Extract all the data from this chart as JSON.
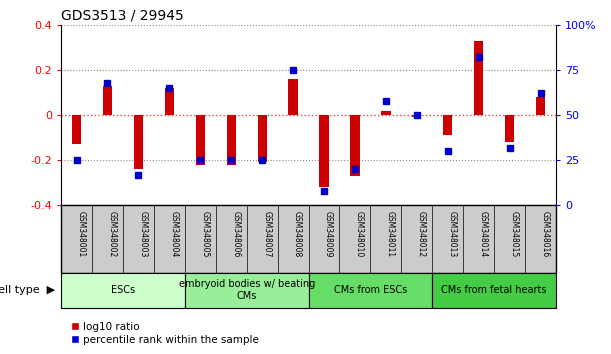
{
  "title": "GDS3513 / 29945",
  "samples": [
    "GSM348001",
    "GSM348002",
    "GSM348003",
    "GSM348004",
    "GSM348005",
    "GSM348006",
    "GSM348007",
    "GSM348008",
    "GSM348009",
    "GSM348010",
    "GSM348011",
    "GSM348012",
    "GSM348013",
    "GSM348014",
    "GSM348015",
    "GSM348016"
  ],
  "log10_ratio": [
    -0.13,
    0.13,
    -0.24,
    0.12,
    -0.22,
    -0.22,
    -0.21,
    0.16,
    -0.32,
    -0.27,
    0.02,
    -0.01,
    -0.09,
    0.33,
    -0.12,
    0.08
  ],
  "percentile_rank": [
    25,
    68,
    17,
    65,
    25,
    25,
    25,
    75,
    8,
    20,
    58,
    50,
    30,
    82,
    32,
    62
  ],
  "cell_type_groups": [
    {
      "label": "ESCs",
      "start": 0,
      "end": 3,
      "color": "#ccffcc"
    },
    {
      "label": "embryoid bodies w/ beating\nCMs",
      "start": 4,
      "end": 7,
      "color": "#99ee99"
    },
    {
      "label": "CMs from ESCs",
      "start": 8,
      "end": 11,
      "color": "#66dd66"
    },
    {
      "label": "CMs from fetal hearts",
      "start": 12,
      "end": 15,
      "color": "#44cc44"
    }
  ],
  "ylim": [
    -0.4,
    0.4
  ],
  "y2lim": [
    0,
    100
  ],
  "yticks": [
    -0.4,
    -0.2,
    0.0,
    0.2,
    0.4
  ],
  "y2ticks": [
    0,
    25,
    50,
    75,
    100
  ],
  "bar_color_red": "#cc0000",
  "dot_color_blue": "#0000cc",
  "zero_line_color": "#ee4444",
  "grid_color": "#888888",
  "background_color": "#ffffff",
  "title_fontsize": 10,
  "cell_type_label": "cell type"
}
